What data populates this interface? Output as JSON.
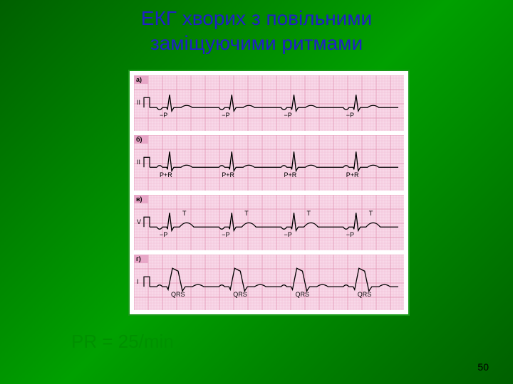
{
  "title_line1": "ЕКГ хворих з повільними",
  "title_line2": "заміщуючими ритмами",
  "formula": "PR = 25/min",
  "page_number": "50",
  "ecg": {
    "panel_border": "#1a9a1a",
    "grid_bg": "#f8d8e8",
    "grid_major": "#e090b0",
    "grid_minor": "#f0b8d0",
    "trace_color": "#000000",
    "label_color": "#000000",
    "label_fontsize": 9,
    "strips": [
      {
        "panel_label": "а)",
        "lead": "II",
        "beats": 4,
        "annot": "−P",
        "wave": {
          "p_neg": true,
          "qrs_h": 18,
          "annot_each": true
        }
      },
      {
        "panel_label": "б)",
        "lead": "II",
        "beats": 4,
        "annot": "P+R",
        "wave": {
          "p_neg": false,
          "qrs_h": 22,
          "annot_each": true
        }
      },
      {
        "panel_label": "в)",
        "lead": "V",
        "beats": 4,
        "annot": "−P",
        "annot2": "T",
        "wave": {
          "p_neg": true,
          "qrs_h": 20,
          "t_prominent": true,
          "annot_each": true
        }
      },
      {
        "panel_label": "г)",
        "lead": "I",
        "beats": 4,
        "annot": "QRS",
        "wave": {
          "p_neg": false,
          "qrs_h": 26,
          "wide_qrs": true,
          "annot_each": true
        }
      }
    ]
  }
}
